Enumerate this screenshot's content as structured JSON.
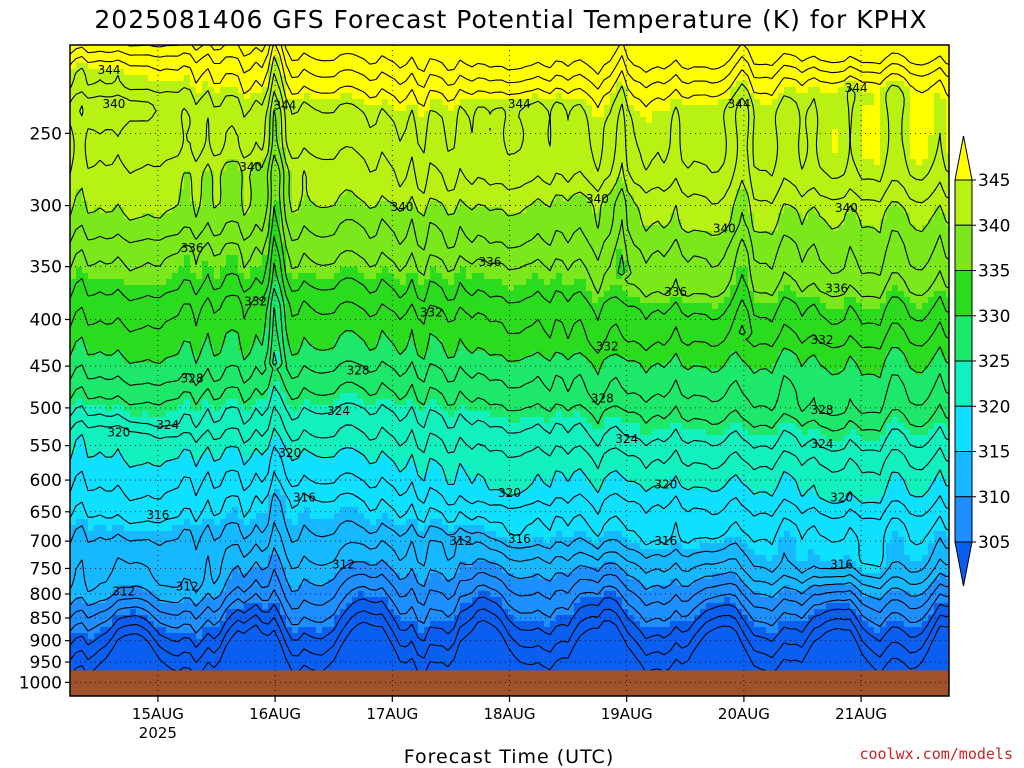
{
  "chart_data": {
    "type": "heatmap",
    "title": "2025081406 GFS Forecast Potential Temperature (K) for KPHX",
    "xlabel": "Forecast Time (UTC)",
    "ylabel": "",
    "x_ticks": [
      {
        "label": "15AUG",
        "sublabel": "2025",
        "hour": 18
      },
      {
        "label": "16AUG",
        "sublabel": "",
        "hour": 42
      },
      {
        "label": "17AUG",
        "sublabel": "",
        "hour": 66
      },
      {
        "label": "18AUG",
        "sublabel": "",
        "hour": 90
      },
      {
        "label": "19AUG",
        "sublabel": "",
        "hour": 114
      },
      {
        "label": "20AUG",
        "sublabel": "",
        "hour": 138
      },
      {
        "label": "21AUG",
        "sublabel": "",
        "hour": 162
      }
    ],
    "xlim_hours": [
      0,
      180
    ],
    "y_ticks": [
      250,
      300,
      350,
      400,
      450,
      500,
      550,
      600,
      650,
      700,
      750,
      800,
      850,
      900,
      950,
      1000
    ],
    "ylim_hpa": [
      200,
      1035
    ],
    "y_scale": "log",
    "surface_hpa": 970,
    "colorbar": {
      "levels": [
        305,
        310,
        315,
        320,
        325,
        330,
        335,
        340,
        345
      ],
      "colors": [
        "#0a5ff0",
        "#1e8fff",
        "#16b8ff",
        "#0fe0ff",
        "#12f0c0",
        "#1ee86a",
        "#2bdc1e",
        "#7be81b",
        "#b8f214",
        "#ffff00"
      ],
      "extend": "both"
    },
    "contour_interval": 2,
    "contour_labels": [
      {
        "value": 344,
        "hour": 8,
        "p": 213
      },
      {
        "value": 344,
        "hour": 44,
        "p": 233
      },
      {
        "value": 344,
        "hour": 92,
        "p": 232
      },
      {
        "value": 344,
        "hour": 137,
        "p": 232
      },
      {
        "value": 344,
        "hour": 161,
        "p": 223
      },
      {
        "value": 340,
        "hour": 9,
        "p": 232
      },
      {
        "value": 340,
        "hour": 37,
        "p": 272
      },
      {
        "value": 340,
        "hour": 68,
        "p": 301
      },
      {
        "value": 340,
        "hour": 108,
        "p": 295
      },
      {
        "value": 340,
        "hour": 134,
        "p": 318
      },
      {
        "value": 340,
        "hour": 159,
        "p": 302
      },
      {
        "value": 336,
        "hour": 25,
        "p": 334
      },
      {
        "value": 336,
        "hour": 86,
        "p": 346
      },
      {
        "value": 336,
        "hour": 124,
        "p": 373
      },
      {
        "value": 336,
        "hour": 157,
        "p": 370
      },
      {
        "value": 332,
        "hour": 38,
        "p": 382
      },
      {
        "value": 332,
        "hour": 74,
        "p": 393
      },
      {
        "value": 332,
        "hour": 110,
        "p": 428
      },
      {
        "value": 332,
        "hour": 154,
        "p": 421
      },
      {
        "value": 328,
        "hour": 25,
        "p": 464
      },
      {
        "value": 328,
        "hour": 59,
        "p": 455
      },
      {
        "value": 328,
        "hour": 109,
        "p": 488
      },
      {
        "value": 328,
        "hour": 154,
        "p": 503
      },
      {
        "value": 324,
        "hour": 20,
        "p": 522
      },
      {
        "value": 324,
        "hour": 55,
        "p": 504
      },
      {
        "value": 324,
        "hour": 114,
        "p": 541
      },
      {
        "value": 324,
        "hour": 154,
        "p": 548
      },
      {
        "value": 320,
        "hour": 10,
        "p": 532
      },
      {
        "value": 320,
        "hour": 45,
        "p": 560
      },
      {
        "value": 320,
        "hour": 90,
        "p": 620
      },
      {
        "value": 320,
        "hour": 122,
        "p": 607
      },
      {
        "value": 320,
        "hour": 158,
        "p": 627
      },
      {
        "value": 316,
        "hour": 18,
        "p": 655
      },
      {
        "value": 316,
        "hour": 48,
        "p": 627
      },
      {
        "value": 316,
        "hour": 92,
        "p": 696
      },
      {
        "value": 316,
        "hour": 122,
        "p": 700
      },
      {
        "value": 316,
        "hour": 158,
        "p": 743
      },
      {
        "value": 312,
        "hour": 11,
        "p": 795
      },
      {
        "value": 312,
        "hour": 24,
        "p": 785
      },
      {
        "value": 312,
        "hour": 56,
        "p": 743
      },
      {
        "value": 312,
        "hour": 80,
        "p": 700
      }
    ]
  },
  "credit": "coolwx.com/models"
}
